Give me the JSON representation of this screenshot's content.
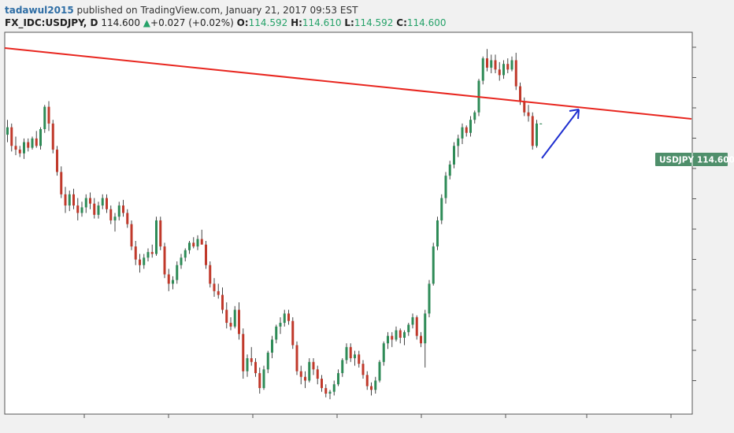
{
  "header": {
    "author": "tadawul2015",
    "published_text": "published on TradingView.com, January 21, 2017 09:53 EST"
  },
  "quote": {
    "symbol": "FX_IDC:USDJPY, D",
    "last": "114.600",
    "change_arrow": "▲",
    "change": "+0.027 (+0.02%)",
    "o_label": "O:",
    "o": "114.592",
    "h_label": "H:",
    "h": "114.610",
    "l_label": "L:",
    "l": "114.592",
    "c_label": "C:",
    "c": "114.600"
  },
  "price_tag": {
    "symbol": "USDJPY",
    "price": "114.600",
    "color": "#4f8f6b"
  },
  "colors": {
    "up_candle": "#2e8b57",
    "down_candle": "#c0392b",
    "trendline": "#e8261f",
    "arrow": "#1f2fd0",
    "wick": "#444444"
  },
  "chart_data": {
    "type": "candlestick",
    "series": [
      {
        "name": "USDJPY",
        "values": [
          [
            114.0,
            114.8,
            113.6,
            114.4
          ],
          [
            114.4,
            114.6,
            113.1,
            113.4
          ],
          [
            113.4,
            113.9,
            112.9,
            113.2
          ],
          [
            113.2,
            113.4,
            112.8,
            113.0
          ],
          [
            113.0,
            113.8,
            112.7,
            113.6
          ],
          [
            113.6,
            113.8,
            113.1,
            113.3
          ],
          [
            113.3,
            113.9,
            113.2,
            113.8
          ],
          [
            113.8,
            114.2,
            113.3,
            113.4
          ],
          [
            113.4,
            114.4,
            113.2,
            114.3
          ],
          [
            114.3,
            115.6,
            114.1,
            115.5
          ],
          [
            115.5,
            115.8,
            114.2,
            114.6
          ],
          [
            114.6,
            114.8,
            113.0,
            113.2
          ],
          [
            113.2,
            113.4,
            111.8,
            112.0
          ],
          [
            112.0,
            112.3,
            110.6,
            110.8
          ],
          [
            110.8,
            111.2,
            109.8,
            110.2
          ],
          [
            110.2,
            111.0,
            109.9,
            110.8
          ],
          [
            110.8,
            111.1,
            110.0,
            110.2
          ],
          [
            110.2,
            110.6,
            109.4,
            109.8
          ],
          [
            109.8,
            110.4,
            109.6,
            110.1
          ],
          [
            110.1,
            110.8,
            109.8,
            110.6
          ],
          [
            110.6,
            110.9,
            110.0,
            110.3
          ],
          [
            110.3,
            110.6,
            109.5,
            109.7
          ],
          [
            109.7,
            110.4,
            109.5,
            110.2
          ],
          [
            110.2,
            110.8,
            110.0,
            110.6
          ],
          [
            110.6,
            110.8,
            109.8,
            110.0
          ],
          [
            110.0,
            110.2,
            109.2,
            109.4
          ],
          [
            109.4,
            109.8,
            108.8,
            109.6
          ],
          [
            109.6,
            110.4,
            109.4,
            110.2
          ],
          [
            110.2,
            110.5,
            109.6,
            109.8
          ],
          [
            109.8,
            110.0,
            109.0,
            109.2
          ],
          [
            109.2,
            109.4,
            107.8,
            108.0
          ],
          [
            108.0,
            108.3,
            107.0,
            107.3
          ],
          [
            107.3,
            107.6,
            106.6,
            107.0
          ],
          [
            107.0,
            107.6,
            106.8,
            107.4
          ],
          [
            107.4,
            107.9,
            107.2,
            107.7
          ],
          [
            107.7,
            108.1,
            107.4,
            107.6
          ],
          [
            107.6,
            109.6,
            107.5,
            109.4
          ],
          [
            109.4,
            109.6,
            107.8,
            108.0
          ],
          [
            108.0,
            108.2,
            106.3,
            106.5
          ],
          [
            106.5,
            106.8,
            105.6,
            106.0
          ],
          [
            106.0,
            106.4,
            105.7,
            106.2
          ],
          [
            106.2,
            107.2,
            106.0,
            107.0
          ],
          [
            107.0,
            107.6,
            106.8,
            107.4
          ],
          [
            107.4,
            107.9,
            107.2,
            107.8
          ],
          [
            107.8,
            108.3,
            107.6,
            108.2
          ],
          [
            108.2,
            108.5,
            107.9,
            108.0
          ],
          [
            108.0,
            108.6,
            107.8,
            108.4
          ],
          [
            108.4,
            108.9,
            108.2,
            108.1
          ],
          [
            108.1,
            108.3,
            106.8,
            107.0
          ],
          [
            107.0,
            107.2,
            105.8,
            106.0
          ],
          [
            106.0,
            106.3,
            105.3,
            105.6
          ],
          [
            105.6,
            106.0,
            105.2,
            105.4
          ],
          [
            105.4,
            105.8,
            104.4,
            104.6
          ],
          [
            104.6,
            105.0,
            103.6,
            103.9
          ],
          [
            103.9,
            104.2,
            103.5,
            103.7
          ],
          [
            103.7,
            104.8,
            103.6,
            104.6
          ],
          [
            104.6,
            105.0,
            103.0,
            103.3
          ],
          [
            103.3,
            103.6,
            100.9,
            101.3
          ],
          [
            101.3,
            102.2,
            101.0,
            102.0
          ],
          [
            102.0,
            102.6,
            101.6,
            101.8
          ],
          [
            101.8,
            102.0,
            101.0,
            101.2
          ],
          [
            101.2,
            101.5,
            100.1,
            100.4
          ],
          [
            100.4,
            101.6,
            100.3,
            101.4
          ],
          [
            101.4,
            102.4,
            101.2,
            102.3
          ],
          [
            102.3,
            103.2,
            102.0,
            103.0
          ],
          [
            103.0,
            103.8,
            102.8,
            103.7
          ],
          [
            103.7,
            104.2,
            103.3,
            103.9
          ],
          [
            103.9,
            104.6,
            103.7,
            104.4
          ],
          [
            104.4,
            104.6,
            103.8,
            104.0
          ],
          [
            104.0,
            104.2,
            102.5,
            102.7
          ],
          [
            102.7,
            102.9,
            101.1,
            101.3
          ],
          [
            101.3,
            101.6,
            100.6,
            101.0
          ],
          [
            101.0,
            101.3,
            100.4,
            100.8
          ],
          [
            100.8,
            102.0,
            100.7,
            101.8
          ],
          [
            101.8,
            102.0,
            101.1,
            101.4
          ],
          [
            101.4,
            101.6,
            100.6,
            100.9
          ],
          [
            100.9,
            101.1,
            100.2,
            100.4
          ],
          [
            100.4,
            100.6,
            99.9,
            100.1
          ],
          [
            100.1,
            100.3,
            99.8,
            100.2
          ],
          [
            100.2,
            100.8,
            100.0,
            100.6
          ],
          [
            100.6,
            101.4,
            100.5,
            101.2
          ],
          [
            101.2,
            102.0,
            101.0,
            101.9
          ],
          [
            101.9,
            102.8,
            101.7,
            102.6
          ],
          [
            102.6,
            102.8,
            101.8,
            102.0
          ],
          [
            102.0,
            102.4,
            101.6,
            102.2
          ],
          [
            102.2,
            102.4,
            101.5,
            101.7
          ],
          [
            101.7,
            101.9,
            100.9,
            101.1
          ],
          [
            101.1,
            101.3,
            100.3,
            100.5
          ],
          [
            100.5,
            100.7,
            100.0,
            100.3
          ],
          [
            100.3,
            101.0,
            100.1,
            100.8
          ],
          [
            100.8,
            101.9,
            100.7,
            101.8
          ],
          [
            101.8,
            102.9,
            101.6,
            102.8
          ],
          [
            102.8,
            103.4,
            102.5,
            103.2
          ],
          [
            103.2,
            103.4,
            102.6,
            103.0
          ],
          [
            103.0,
            103.7,
            102.9,
            103.5
          ],
          [
            103.5,
            103.6,
            102.8,
            103.1
          ],
          [
            103.1,
            103.5,
            102.7,
            103.4
          ],
          [
            103.4,
            103.9,
            103.2,
            103.8
          ],
          [
            103.8,
            104.4,
            103.6,
            104.2
          ],
          [
            104.2,
            104.3,
            103.0,
            103.2
          ],
          [
            103.2,
            103.4,
            102.6,
            102.8
          ],
          [
            102.8,
            104.6,
            101.5,
            104.4
          ],
          [
            104.4,
            106.2,
            104.2,
            106.0
          ],
          [
            106.0,
            108.2,
            105.9,
            108.0
          ],
          [
            108.0,
            109.6,
            107.8,
            109.4
          ],
          [
            109.4,
            110.8,
            109.2,
            110.6
          ],
          [
            110.6,
            112.0,
            110.3,
            111.8
          ],
          [
            111.8,
            112.6,
            111.6,
            112.4
          ],
          [
            112.4,
            113.6,
            112.2,
            113.4
          ],
          [
            113.4,
            114.0,
            112.8,
            113.8
          ],
          [
            113.8,
            114.6,
            113.5,
            114.4
          ],
          [
            114.4,
            114.5,
            113.9,
            114.1
          ],
          [
            114.1,
            115.0,
            113.9,
            114.8
          ],
          [
            114.8,
            115.3,
            114.6,
            115.2
          ],
          [
            115.2,
            117.0,
            115.0,
            116.9
          ],
          [
            116.9,
            118.2,
            116.7,
            118.1
          ],
          [
            118.1,
            118.6,
            117.4,
            117.6
          ],
          [
            117.6,
            118.3,
            117.3,
            118.0
          ],
          [
            118.0,
            118.3,
            117.3,
            117.5
          ],
          [
            117.5,
            117.9,
            116.9,
            117.2
          ],
          [
            117.2,
            118.0,
            117.0,
            117.8
          ],
          [
            117.8,
            118.1,
            117.3,
            117.5
          ],
          [
            117.5,
            118.2,
            117.4,
            118.0
          ],
          [
            118.0,
            118.4,
            116.4,
            116.6
          ],
          [
            116.6,
            116.8,
            115.6,
            115.8
          ],
          [
            115.8,
            116.0,
            115.0,
            115.2
          ],
          [
            115.2,
            115.6,
            114.7,
            115.0
          ],
          [
            115.0,
            115.2,
            113.2,
            113.4
          ],
          [
            113.4,
            114.8,
            113.3,
            114.6
          ],
          [
            114.592,
            114.61,
            114.592,
            114.6
          ]
        ]
      }
    ],
    "ylim": [
      99.0,
      119.5
    ]
  }
}
